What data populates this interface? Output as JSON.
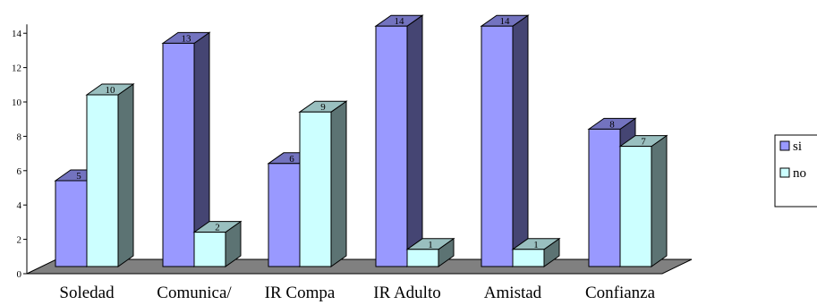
{
  "chart_data": {
    "type": "bar",
    "categories": [
      "Soledad",
      "Comunica/",
      "IR Compa",
      "IR Adulto",
      "Amistad",
      "Confianza"
    ],
    "series": [
      {
        "name": "si",
        "values": [
          5,
          13,
          6,
          14,
          14,
          8
        ],
        "color": "#9999ff"
      },
      {
        "name": "no",
        "values": [
          10,
          2,
          9,
          1,
          1,
          7
        ],
        "color": "#ccffff"
      }
    ],
    "ylim": [
      0,
      14
    ],
    "yticks": [
      0,
      2,
      4,
      6,
      8,
      10,
      12,
      14
    ],
    "legend_position": "right",
    "grid": false,
    "style": "3d-clustered-column",
    "floor_color": "#808080"
  }
}
